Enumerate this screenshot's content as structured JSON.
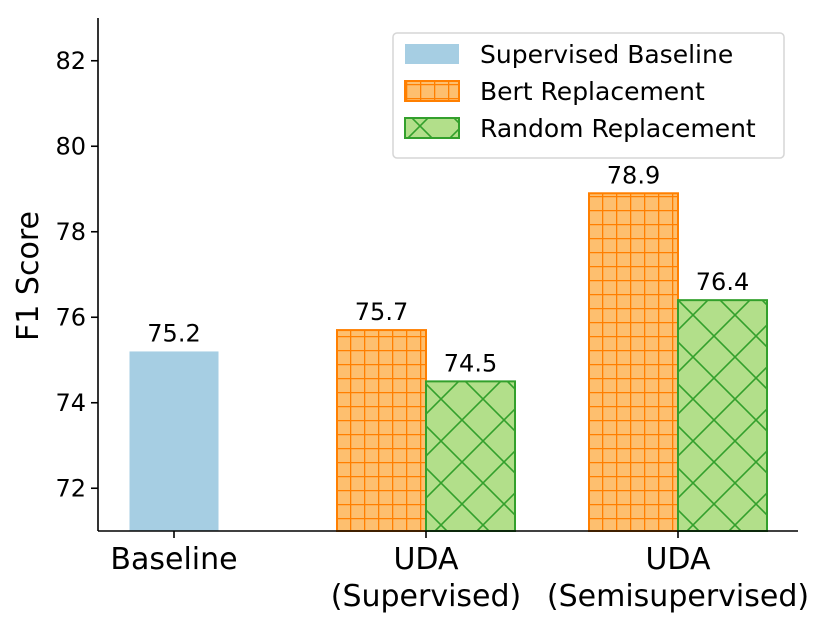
{
  "chart_data": {
    "type": "bar",
    "title": "",
    "xlabel": "",
    "ylabel": "F1 Score",
    "ylim": [
      71,
      83
    ],
    "yticks": [
      72,
      74,
      76,
      78,
      80,
      82
    ],
    "grid": false,
    "legend_position": "top-right",
    "groups": [
      {
        "label_lines": [
          "Baseline"
        ]
      },
      {
        "label_lines": [
          "UDA",
          "(Supervised)"
        ]
      },
      {
        "label_lines": [
          "UDA",
          "(Semisupervised)"
        ]
      }
    ],
    "series": [
      {
        "name": "Supervised Baseline",
        "color": "#a6cee3",
        "edge": "#a6cee3",
        "hatch": "none",
        "values": [
          75.2,
          null,
          null
        ]
      },
      {
        "name": "Bert Replacement",
        "color": "#fdbf6f",
        "edge": "#ff7f00",
        "hatch": "grid",
        "values": [
          null,
          75.7,
          78.9
        ]
      },
      {
        "name": "Random Replacement",
        "color": "#b2df8a",
        "edge": "#33a02c",
        "hatch": "cross",
        "values": [
          null,
          74.5,
          76.4
        ]
      }
    ],
    "data_labels": [
      {
        "series": 0,
        "group": 0,
        "text": "75.2"
      },
      {
        "series": 1,
        "group": 1,
        "text": "75.7"
      },
      {
        "series": 2,
        "group": 1,
        "text": "74.5"
      },
      {
        "series": 1,
        "group": 2,
        "text": "78.9"
      },
      {
        "series": 2,
        "group": 2,
        "text": "76.4"
      }
    ]
  }
}
